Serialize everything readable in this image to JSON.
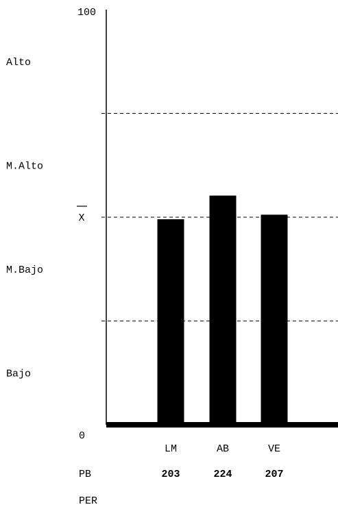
{
  "chart_data": {
    "type": "bar",
    "categories": [
      "LM",
      "AB",
      "VE"
    ],
    "values": [
      49.5,
      55.2,
      50.6
    ],
    "ylim": [
      0,
      100
    ],
    "y_tick_labels": {
      "top": "100",
      "bottom": "0"
    },
    "mean_label": "X",
    "mean_value": 50,
    "reference_lines": [
      25,
      50,
      75
    ],
    "level_labels": [
      "Alto",
      "M.Alto",
      "M.Bajo",
      "Bajo"
    ],
    "row_labels": {
      "pb": "PB",
      "per": "PER"
    },
    "pb_values": [
      "203",
      "224",
      "207"
    ],
    "grid": false,
    "colors": {
      "bars": "#000000",
      "lines": "#000000",
      "background": "#ffffff"
    }
  }
}
